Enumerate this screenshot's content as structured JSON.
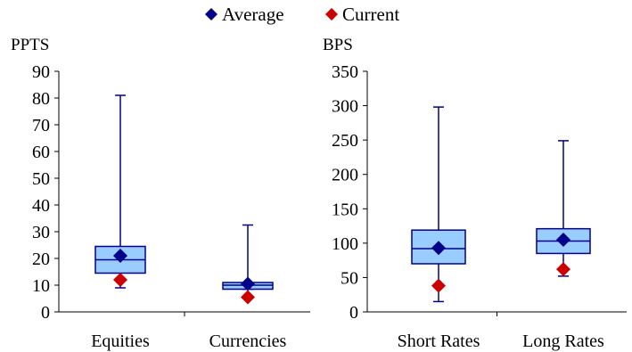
{
  "legend": {
    "position": "top-center",
    "items": [
      {
        "label": "Average",
        "marker": "diamond",
        "color": "#00008B"
      },
      {
        "label": "Current",
        "marker": "diamond",
        "color": "#CC0000"
      }
    ]
  },
  "colors": {
    "box_fill": "#99CCFF",
    "box_stroke": "#00008B",
    "whisker": "#00008B",
    "average": "#00008B",
    "current": "#CC0000"
  },
  "chart_data": [
    {
      "type": "box",
      "unit_label": "PPTS",
      "ylim": [
        0,
        90
      ],
      "yticks": [
        0,
        10,
        20,
        30,
        40,
        50,
        60,
        70,
        80,
        90
      ],
      "categories": [
        "Equities",
        "Currencies"
      ],
      "boxes": [
        {
          "min": 9,
          "q1": 14.5,
          "median": 19.5,
          "q3": 24.5,
          "max": 81,
          "average": 21,
          "current": 12
        },
        {
          "min": 8.5,
          "q1": 8.5,
          "median": 10,
          "q3": 11,
          "max": 32.5,
          "average": 10.5,
          "current": 5.5
        }
      ]
    },
    {
      "type": "box",
      "unit_label": "BPS",
      "ylim": [
        0,
        350
      ],
      "yticks": [
        0,
        50,
        100,
        150,
        200,
        250,
        300,
        350
      ],
      "categories": [
        "Short Rates",
        "Long Rates"
      ],
      "boxes": [
        {
          "min": 15,
          "q1": 70,
          "median": 92,
          "q3": 119,
          "max": 298,
          "average": 93,
          "current": 38
        },
        {
          "min": 52,
          "q1": 85,
          "median": 103,
          "q3": 121,
          "max": 249,
          "average": 105,
          "current": 62
        }
      ]
    }
  ]
}
